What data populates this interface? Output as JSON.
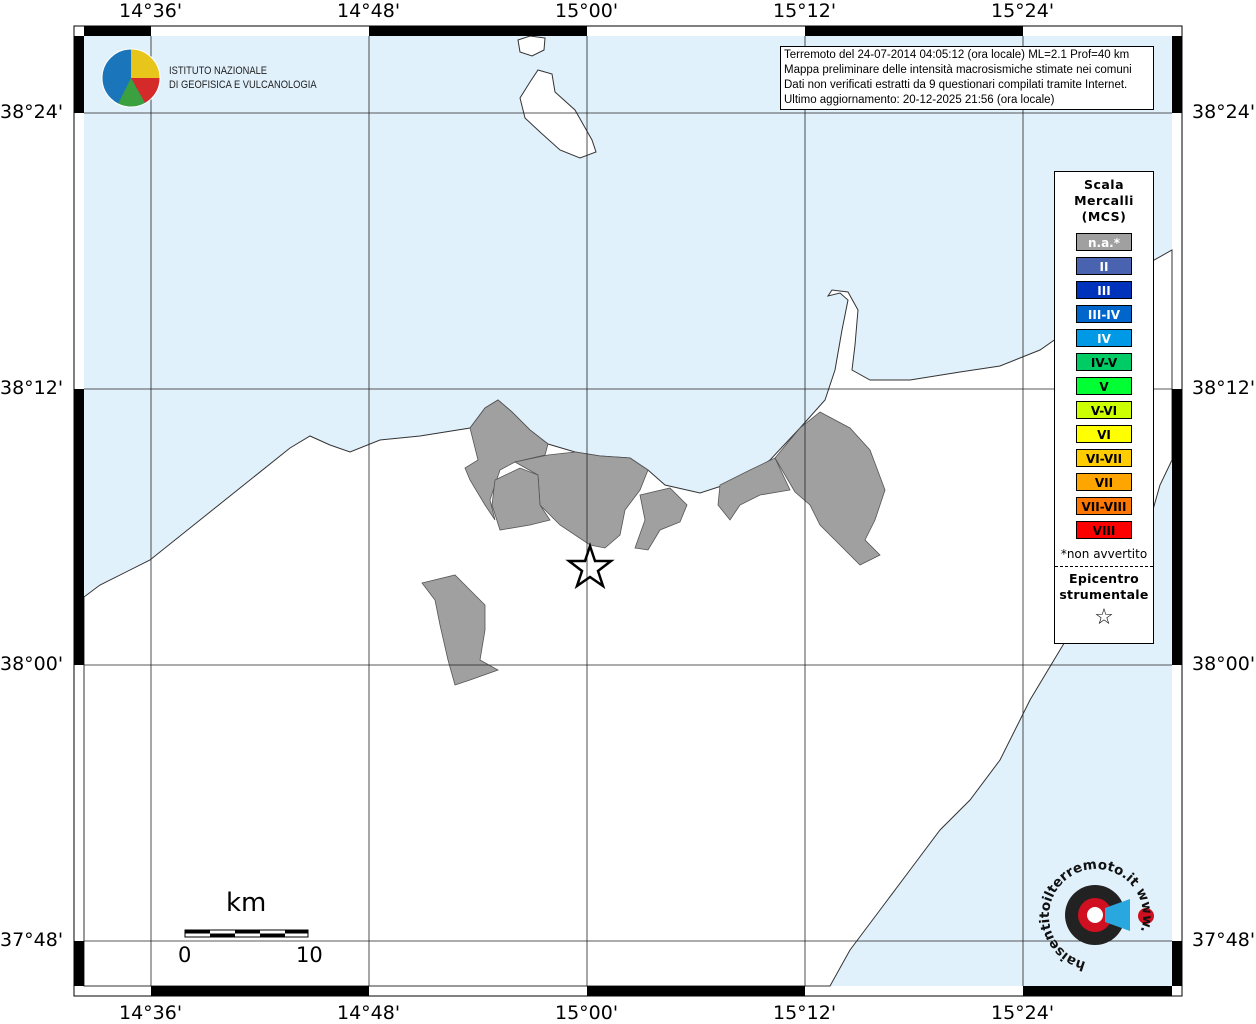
{
  "map": {
    "lon_labels": [
      "14°36'",
      "14°48'",
      "15°00'",
      "15°12'",
      "15°24'"
    ],
    "lat_labels": [
      "38°24'",
      "38°12'",
      "38°00'",
      "37°48'"
    ],
    "colors": {
      "sea": "#e1f1fc",
      "land": "#ffffff",
      "not_felt": "#a0a0a0"
    },
    "epicenter_icon": "star-icon"
  },
  "info_box": {
    "lines": [
      "Terremoto del 24-07-2014 04:05:12 (ora locale) ML=2.1 Prof=40 km",
      "Mappa preliminare delle intensità macrosismiche stimate nei comuni",
      "Dati non verificati estratti da 9 questionari compilati tramite Internet.",
      "Ultimo aggiornamento: 20-12-2025 21:56 (ora locale)"
    ]
  },
  "logo": {
    "line1": "ISTITUTO NAZIONALE",
    "line2": "DI GEOFISICA E VULCANOLOGIA"
  },
  "logo2": {
    "text": "haisentitoilterremoto.it www."
  },
  "legend": {
    "title": [
      "Scala",
      "Mercalli",
      "(MCS)"
    ],
    "items": [
      {
        "label": "n.a.*",
        "color": "#a0a0a0",
        "text": "#ffffff"
      },
      {
        "label": "II",
        "color": "#4a63b0",
        "text": "#ffffff"
      },
      {
        "label": "III",
        "color": "#0033bb",
        "text": "#ffffff"
      },
      {
        "label": "III-IV",
        "color": "#0066cc",
        "text": "#ffffff"
      },
      {
        "label": "IV",
        "color": "#0099e6",
        "text": "#ffffff"
      },
      {
        "label": "IV-V",
        "color": "#00cc66",
        "text": "#000000"
      },
      {
        "label": "V",
        "color": "#00ff33",
        "text": "#000000"
      },
      {
        "label": "V-VI",
        "color": "#ccff00",
        "text": "#000000"
      },
      {
        "label": "VI",
        "color": "#ffff00",
        "text": "#000000"
      },
      {
        "label": "VI-VII",
        "color": "#ffcc00",
        "text": "#000000"
      },
      {
        "label": "VII",
        "color": "#ffa500",
        "text": "#000000"
      },
      {
        "label": "VII-VIII",
        "color": "#ff7700",
        "text": "#000000"
      },
      {
        "label": "VIII",
        "color": "#ff0000",
        "text": "#000000"
      }
    ],
    "note": "*non avvertito",
    "epicenter_title": [
      "Epicentro",
      "strumentale"
    ],
    "epicenter_symbol": "☆"
  },
  "scale_bar": {
    "unit": "km",
    "start": "0",
    "end": "10"
  }
}
